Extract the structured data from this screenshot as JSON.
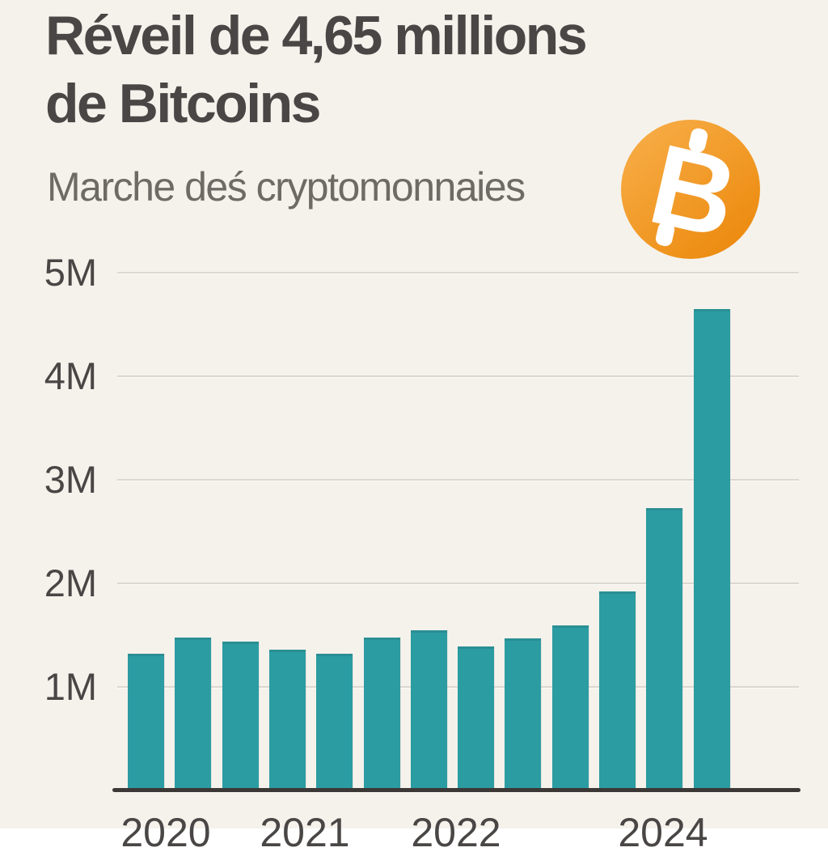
{
  "theme": {
    "background": "#f5f2ec",
    "bar_color": "#2b9ca1",
    "bar_edge_color": "#2a8f94",
    "grid_color": "#dcd8d0",
    "axis_color": "#3b3836",
    "text_dark": "#494645",
    "text_gray": "#6e6b66",
    "bitcoin_orange_light": "#f7ac45",
    "bitcoin_orange_dark": "#ec8a0e",
    "bitcoin_symbol_color": "#ffffff"
  },
  "header": {
    "title_lines": [
      "Réveil de 4,65 millions",
      "de Bitcoins"
    ],
    "subtitle": "Marche deś cryptomonnaies"
  },
  "bitcoin_badge": {
    "symbol": "B"
  },
  "chart_data": {
    "type": "bar",
    "title": "Réveil de 4,65 millions de Bitcoins",
    "subtitle": "Marche deś cryptomonnaies",
    "unit": "millions de bitcoins",
    "grid": true,
    "legend": "none",
    "ylim": [
      0,
      5.3
    ],
    "y_ticks": [
      {
        "label": "5M",
        "value": 5
      },
      {
        "label": "4M",
        "value": 4
      },
      {
        "label": "3M",
        "value": 3
      },
      {
        "label": "2M",
        "value": 2
      },
      {
        "label": "1M",
        "value": 1
      }
    ],
    "values_millions": [
      1.32,
      1.48,
      1.44,
      1.36,
      1.32,
      1.48,
      1.55,
      1.39,
      1.47,
      1.59,
      1.92,
      2.73,
      4.65
    ],
    "x_tick_labels": [
      {
        "label": "2020",
        "x": 205
      },
      {
        "label": "2021",
        "x": 377
      },
      {
        "label": "2022",
        "x": 564
      },
      {
        "label": "2024",
        "x": 820
      }
    ]
  }
}
